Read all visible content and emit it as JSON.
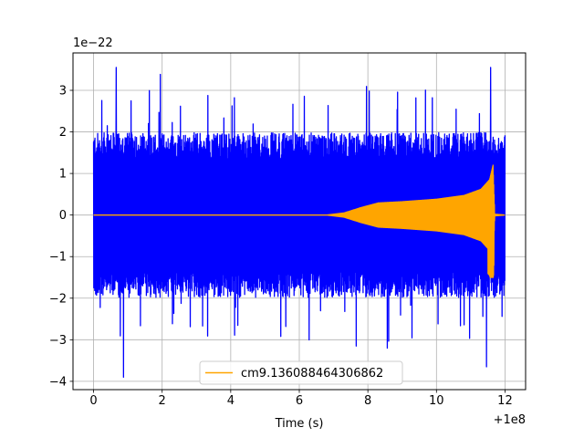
{
  "chart_data": {
    "type": "line",
    "title": "",
    "xlabel": "Time (s)",
    "ylabel": "",
    "x_offset_label": "+1e8",
    "y_scale_label": "1e−22",
    "xlim": [
      -0.6,
      12.6
    ],
    "ylim": [
      -4.2,
      3.9
    ],
    "xticks": [
      0,
      2,
      4,
      6,
      8,
      10,
      12
    ],
    "xtick_labels": [
      "0",
      "2",
      "4",
      "6",
      "8",
      "10",
      "12"
    ],
    "yticks": [
      -4,
      -3,
      -2,
      -1,
      0,
      1,
      2,
      3
    ],
    "ytick_labels": [
      "−4",
      "−3",
      "−2",
      "−1",
      "0",
      "1",
      "2",
      "3"
    ],
    "grid": true,
    "legend_position": "bottom-center",
    "series": [
      {
        "name": "",
        "color": "#0000ff",
        "kind": "noise-strain",
        "x_range": [
          0,
          12
        ],
        "typical_envelope": 1.8,
        "max": 3.55,
        "min": -3.9
      },
      {
        "name": "cm9.136088464306862",
        "color": "#ffa500",
        "kind": "chirp-waveform",
        "envelope_points": [
          {
            "x": 0.0,
            "y": 0.0
          },
          {
            "x": 6.8,
            "y": 0.0
          },
          {
            "x": 7.3,
            "y": 0.05
          },
          {
            "x": 7.8,
            "y": 0.18
          },
          {
            "x": 8.3,
            "y": 0.29
          },
          {
            "x": 9.0,
            "y": 0.32
          },
          {
            "x": 10.0,
            "y": 0.38
          },
          {
            "x": 10.8,
            "y": 0.47
          },
          {
            "x": 11.3,
            "y": 0.62
          },
          {
            "x": 11.55,
            "y": 0.85
          },
          {
            "x": 11.65,
            "y": 1.2
          },
          {
            "x": 11.7,
            "y": 0.02
          },
          {
            "x": 12.0,
            "y": 0.0
          }
        ],
        "peak_min": -1.5
      }
    ]
  }
}
